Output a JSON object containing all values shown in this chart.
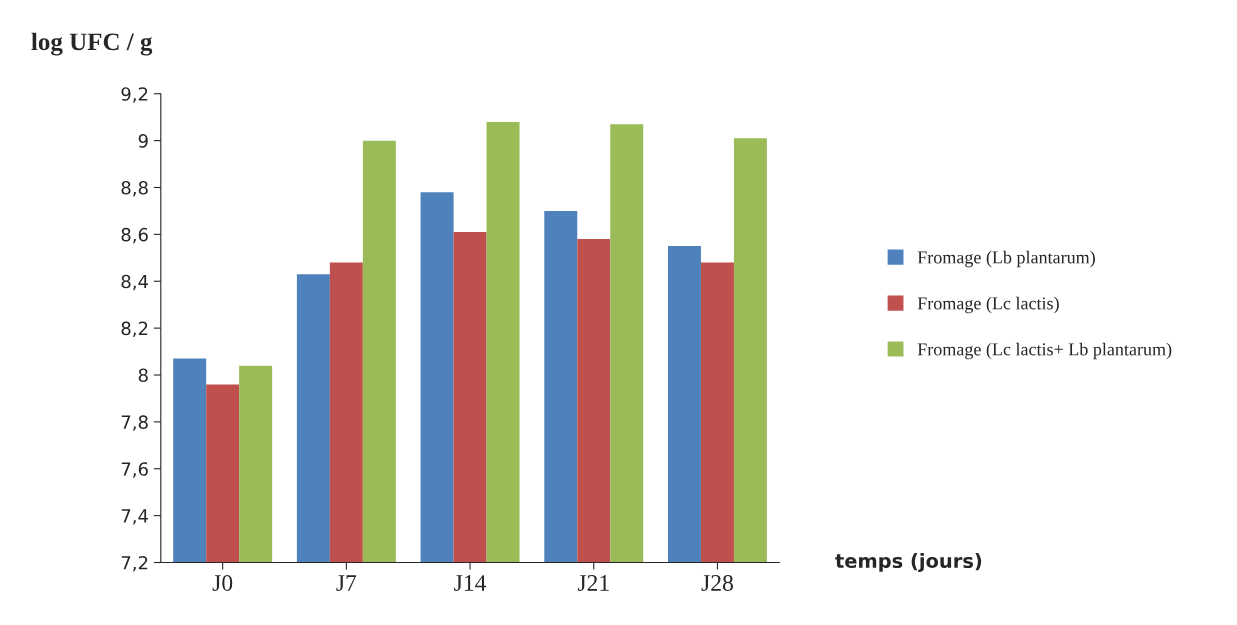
{
  "chart_data": {
    "type": "bar",
    "ylabel": "log UFC / g",
    "xlabel": "temps (jours)",
    "categories": [
      "J0",
      "J7",
      "J14",
      "J21",
      "J28"
    ],
    "series": [
      {
        "name": "Fromage (Lb plantarum)",
        "color": "#4f81bd",
        "values": [
          8.07,
          8.43,
          8.78,
          8.7,
          8.55
        ]
      },
      {
        "name": "Fromage (Lc lactis)",
        "color": "#c0504d",
        "values": [
          7.96,
          8.48,
          8.61,
          8.58,
          8.48
        ]
      },
      {
        "name": "Fromage (Lc lactis+ Lb plantarum)",
        "color": "#9bbb59",
        "values": [
          8.04,
          9.0,
          9.08,
          9.07,
          9.01
        ]
      }
    ],
    "ylim": [
      7.2,
      9.2
    ],
    "yticks": [
      {
        "value": 7.2,
        "label": "7,2"
      },
      {
        "value": 7.4,
        "label": "7,4"
      },
      {
        "value": 7.6,
        "label": "7,6"
      },
      {
        "value": 7.8,
        "label": "7,8"
      },
      8,
      {
        "value": 8.2,
        "label": "8,2"
      },
      {
        "value": 8.4,
        "label": "8,4"
      },
      {
        "value": 8.6,
        "label": "8,6"
      },
      {
        "value": 8.8,
        "label": "8,8"
      },
      9,
      {
        "value": 9.2,
        "label": "9,2"
      }
    ],
    "grid": false,
    "legend": "right"
  }
}
